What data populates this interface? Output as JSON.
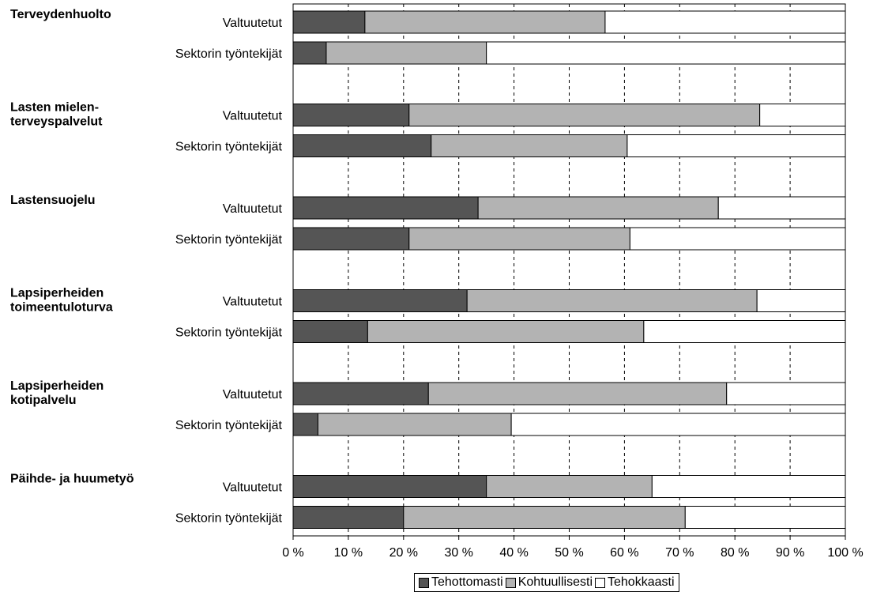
{
  "chart_data": {
    "type": "bar",
    "orientation": "horizontal",
    "stacked": true,
    "groups": [
      {
        "label_lines": [
          "Terveydenhuolto"
        ],
        "bars": [
          {
            "label": "Valtuutetut",
            "values": [
              13,
              43.5,
              43.5
            ]
          },
          {
            "label": "Sektorin työntekijät",
            "values": [
              6,
              29,
              65
            ]
          }
        ]
      },
      {
        "label_lines": [
          "Lasten mielen-",
          "terveyspalvelut"
        ],
        "bars": [
          {
            "label": "Valtuutetut",
            "values": [
              21,
              63.5,
              15.5
            ]
          },
          {
            "label": "Sektorin työntekijät",
            "values": [
              25,
              35.5,
              39.5
            ]
          }
        ]
      },
      {
        "label_lines": [
          "Lastensuojelu"
        ],
        "bars": [
          {
            "label": "Valtuutetut",
            "values": [
              33.5,
              43.5,
              23
            ]
          },
          {
            "label": "Sektorin työntekijät",
            "values": [
              21,
              40,
              39
            ]
          }
        ]
      },
      {
        "label_lines": [
          "Lapsiperheiden",
          "toimeentuloturva"
        ],
        "bars": [
          {
            "label": "Valtuutetut",
            "values": [
              31.5,
              52.5,
              16
            ]
          },
          {
            "label": "Sektorin työntekijät",
            "values": [
              13.5,
              50,
              36.5
            ]
          }
        ]
      },
      {
        "label_lines": [
          "Lapsiperheiden",
          "kotipalvelu"
        ],
        "bars": [
          {
            "label": "Valtuutetut",
            "values": [
              24.5,
              54,
              21.5
            ]
          },
          {
            "label": "Sektorin työntekijät",
            "values": [
              4.5,
              35,
              60.5
            ]
          }
        ]
      },
      {
        "label_lines": [
          "Päihde- ja huumetyö"
        ],
        "bars": [
          {
            "label": "Valtuutetut",
            "values": [
              35,
              30,
              35
            ]
          },
          {
            "label": "Sektorin työntekijät",
            "values": [
              20,
              51,
              29
            ]
          }
        ]
      }
    ],
    "series": [
      {
        "name": "Tehottomasti",
        "color": "#555555"
      },
      {
        "name": "Kohtuullisesti",
        "color": "#b3b3b3"
      },
      {
        "name": "Tehokkaasti",
        "color": "#ffffff"
      }
    ],
    "xlim": [
      0,
      100
    ],
    "x_ticks": [
      "0 %",
      "10 %",
      "20 %",
      "30 %",
      "40 %",
      "50 %",
      "60 %",
      "70 %",
      "80 %",
      "90 %",
      "100 %"
    ],
    "grid": "vertical-dashed",
    "legend_position": "bottom-center"
  }
}
